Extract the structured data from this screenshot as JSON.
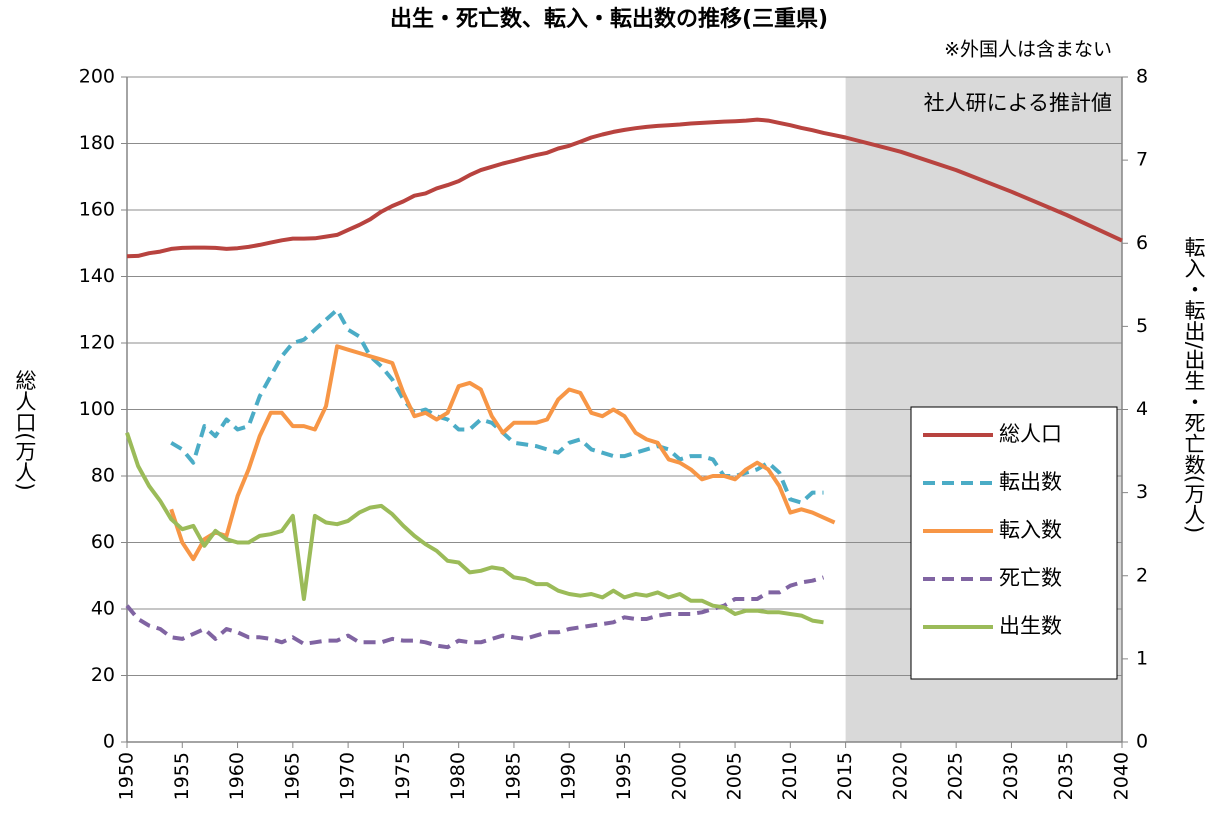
{
  "chart_data": {
    "type": "line",
    "title": "出生・死亡数、転入・転出数の推移(三重県)",
    "note": "※外国人は含まない",
    "y_label": "総人口(万人)",
    "y2_label": "転入・転出/出生・死亡数(万人)",
    "shaded_region": {
      "from": 2015,
      "to": 2040,
      "label": "社人研による推計値"
    },
    "xlim": [
      1950,
      2040
    ],
    "xticks": [
      1950,
      1955,
      1960,
      1965,
      1970,
      1975,
      1980,
      1985,
      1990,
      1995,
      2000,
      2005,
      2010,
      2015,
      2020,
      2025,
      2030,
      2035,
      2040
    ],
    "ylim": [
      0,
      200
    ],
    "yticks": [
      0,
      20,
      40,
      60,
      80,
      100,
      120,
      140,
      160,
      180,
      200
    ],
    "y2lim": [
      0,
      8
    ],
    "y2ticks": [
      0,
      1,
      2,
      3,
      4,
      5,
      6,
      7,
      8
    ],
    "grid": true,
    "legend": "right",
    "series": [
      {
        "name": "総人口",
        "color": "#b8433f",
        "dashed": false,
        "axis": "y",
        "x": [
          1950,
          1951,
          1952,
          1953,
          1954,
          1955,
          1956,
          1957,
          1958,
          1959,
          1960,
          1961,
          1962,
          1963,
          1964,
          1965,
          1966,
          1967,
          1968,
          1969,
          1970,
          1971,
          1972,
          1973,
          1974,
          1975,
          1976,
          1977,
          1978,
          1979,
          1980,
          1981,
          1982,
          1983,
          1984,
          1985,
          1986,
          1987,
          1988,
          1989,
          1990,
          1991,
          1992,
          1993,
          1994,
          1995,
          1996,
          1997,
          1998,
          1999,
          2000,
          2001,
          2002,
          2003,
          2004,
          2005,
          2006,
          2007,
          2008,
          2009,
          2010,
          2011,
          2012,
          2013,
          2014,
          2015,
          2020,
          2025,
          2030,
          2035,
          2040
        ],
        "values": [
          146.1,
          146.2,
          147,
          147.5,
          148.3,
          148.6,
          148.7,
          148.7,
          148.6,
          148.3,
          148.5,
          148.9,
          149.5,
          150.2,
          150.9,
          151.4,
          151.4,
          151.5,
          152,
          152.5,
          154,
          155.5,
          157.2,
          159.5,
          161.2,
          162.6,
          164.3,
          165,
          166.5,
          167.5,
          168.7,
          170.5,
          172,
          173,
          174,
          174.8,
          175.7,
          176.5,
          177.2,
          178.5,
          179.3,
          180.5,
          181.8,
          182.7,
          183.5,
          184.1,
          184.6,
          185,
          185.3,
          185.5,
          185.7,
          186,
          186.2,
          186.4,
          186.6,
          186.7,
          186.9,
          187.2,
          186.9,
          186.2,
          185.5,
          184.7,
          184,
          183.2,
          182.5,
          181.8,
          177.5,
          172,
          165.5,
          158.5,
          150.8
        ]
      },
      {
        "name": "転出数",
        "color": "#4bacc6",
        "dashed": true,
        "axis": "y2",
        "x": [
          1954,
          1955,
          1956,
          1957,
          1958,
          1959,
          1960,
          1961,
          1962,
          1963,
          1964,
          1965,
          1966,
          1967,
          1968,
          1969,
          1970,
          1971,
          1972,
          1973,
          1974,
          1975,
          1976,
          1977,
          1978,
          1979,
          1980,
          1981,
          1982,
          1983,
          1984,
          1985,
          1986,
          1987,
          1988,
          1989,
          1990,
          1991,
          1992,
          1993,
          1994,
          1995,
          1996,
          1997,
          1998,
          1999,
          2000,
          2001,
          2002,
          2003,
          2004,
          2005,
          2006,
          2007,
          2008,
          2009,
          2010,
          2011,
          2012,
          2013
        ],
        "values": [
          3.6,
          3.52,
          3.36,
          3.8,
          3.68,
          3.88,
          3.76,
          3.8,
          4.16,
          4.4,
          4.64,
          4.8,
          4.84,
          4.96,
          5.08,
          5.2,
          4.96,
          4.88,
          4.64,
          4.52,
          4.36,
          4.12,
          3.96,
          4,
          3.92,
          3.88,
          3.76,
          3.76,
          3.88,
          3.84,
          3.72,
          3.6,
          3.58,
          3.56,
          3.52,
          3.48,
          3.6,
          3.64,
          3.52,
          3.48,
          3.44,
          3.44,
          3.48,
          3.52,
          3.56,
          3.52,
          3.4,
          3.44,
          3.44,
          3.4,
          3.2,
          3.2,
          3.24,
          3.28,
          3.36,
          3.24,
          2.92,
          2.88,
          3,
          3
        ]
      },
      {
        "name": "転入数",
        "color": "#f79646",
        "dashed": false,
        "axis": "y2",
        "x": [
          1954,
          1955,
          1956,
          1957,
          1958,
          1959,
          1960,
          1961,
          1962,
          1963,
          1964,
          1965,
          1966,
          1967,
          1968,
          1969,
          1970,
          1971,
          1972,
          1973,
          1974,
          1975,
          1976,
          1977,
          1978,
          1979,
          1980,
          1981,
          1982,
          1983,
          1984,
          1985,
          1986,
          1987,
          1988,
          1989,
          1990,
          1991,
          1992,
          1993,
          1994,
          1995,
          1996,
          1997,
          1998,
          1999,
          2000,
          2001,
          2002,
          2003,
          2004,
          2005,
          2006,
          2007,
          2008,
          2009,
          2010,
          2011,
          2012,
          2013,
          2014
        ],
        "values": [
          2.8,
          2.4,
          2.2,
          2.44,
          2.52,
          2.48,
          2.96,
          3.28,
          3.68,
          3.96,
          3.96,
          3.8,
          3.8,
          3.76,
          4.04,
          4.76,
          4.72,
          4.68,
          4.64,
          4.6,
          4.56,
          4.2,
          3.92,
          3.96,
          3.88,
          3.96,
          4.28,
          4.32,
          4.24,
          3.92,
          3.72,
          3.84,
          3.84,
          3.84,
          3.88,
          4.12,
          4.24,
          4.2,
          3.96,
          3.92,
          4,
          3.92,
          3.72,
          3.64,
          3.6,
          3.4,
          3.36,
          3.28,
          3.16,
          3.2,
          3.2,
          3.16,
          3.28,
          3.36,
          3.28,
          3.08,
          2.76,
          2.8,
          2.76,
          2.7,
          2.64
        ]
      },
      {
        "name": "死亡数",
        "color": "#8064a2",
        "dashed": true,
        "axis": "y2",
        "x": [
          1950,
          1951,
          1952,
          1953,
          1954,
          1955,
          1956,
          1957,
          1958,
          1959,
          1960,
          1961,
          1962,
          1963,
          1964,
          1965,
          1966,
          1967,
          1968,
          1969,
          1970,
          1971,
          1972,
          1973,
          1974,
          1975,
          1976,
          1977,
          1978,
          1979,
          1980,
          1981,
          1982,
          1983,
          1984,
          1985,
          1986,
          1987,
          1988,
          1989,
          1990,
          1991,
          1992,
          1993,
          1994,
          1995,
          1996,
          1997,
          1998,
          1999,
          2000,
          2001,
          2002,
          2003,
          2004,
          2005,
          2006,
          2007,
          2008,
          2009,
          2010,
          2011,
          2012,
          2013
        ],
        "values": [
          1.64,
          1.48,
          1.4,
          1.36,
          1.26,
          1.24,
          1.3,
          1.36,
          1.24,
          1.36,
          1.32,
          1.26,
          1.26,
          1.24,
          1.2,
          1.26,
          1.18,
          1.2,
          1.22,
          1.22,
          1.28,
          1.2,
          1.2,
          1.2,
          1.24,
          1.22,
          1.22,
          1.2,
          1.16,
          1.14,
          1.22,
          1.2,
          1.2,
          1.24,
          1.28,
          1.26,
          1.24,
          1.28,
          1.32,
          1.32,
          1.36,
          1.38,
          1.4,
          1.42,
          1.44,
          1.5,
          1.48,
          1.48,
          1.52,
          1.54,
          1.54,
          1.54,
          1.56,
          1.6,
          1.64,
          1.72,
          1.72,
          1.72,
          1.8,
          1.8,
          1.88,
          1.92,
          1.94,
          1.98
        ]
      },
      {
        "name": "出生数",
        "color": "#9bbb59",
        "dashed": false,
        "axis": "y2",
        "x": [
          1950,
          1951,
          1952,
          1953,
          1954,
          1955,
          1956,
          1957,
          1958,
          1959,
          1960,
          1961,
          1962,
          1963,
          1964,
          1965,
          1966,
          1967,
          1968,
          1969,
          1970,
          1971,
          1972,
          1973,
          1974,
          1975,
          1976,
          1977,
          1978,
          1979,
          1980,
          1981,
          1982,
          1983,
          1984,
          1985,
          1986,
          1987,
          1988,
          1989,
          1990,
          1991,
          1992,
          1993,
          1994,
          1995,
          1996,
          1997,
          1998,
          1999,
          2000,
          2001,
          2002,
          2003,
          2004,
          2005,
          2006,
          2007,
          2008,
          2009,
          2010,
          2011,
          2012,
          2013
        ],
        "values": [
          3.72,
          3.32,
          3.08,
          2.9,
          2.68,
          2.56,
          2.6,
          2.36,
          2.54,
          2.44,
          2.4,
          2.4,
          2.48,
          2.5,
          2.54,
          2.72,
          1.72,
          2.72,
          2.64,
          2.62,
          2.66,
          2.76,
          2.82,
          2.84,
          2.74,
          2.6,
          2.48,
          2.38,
          2.3,
          2.18,
          2.16,
          2.04,
          2.06,
          2.1,
          2.08,
          1.98,
          1.96,
          1.9,
          1.9,
          1.82,
          1.78,
          1.76,
          1.78,
          1.74,
          1.82,
          1.74,
          1.78,
          1.76,
          1.8,
          1.74,
          1.78,
          1.7,
          1.7,
          1.64,
          1.62,
          1.54,
          1.58,
          1.58,
          1.56,
          1.56,
          1.54,
          1.52,
          1.46,
          1.44
        ]
      }
    ]
  }
}
